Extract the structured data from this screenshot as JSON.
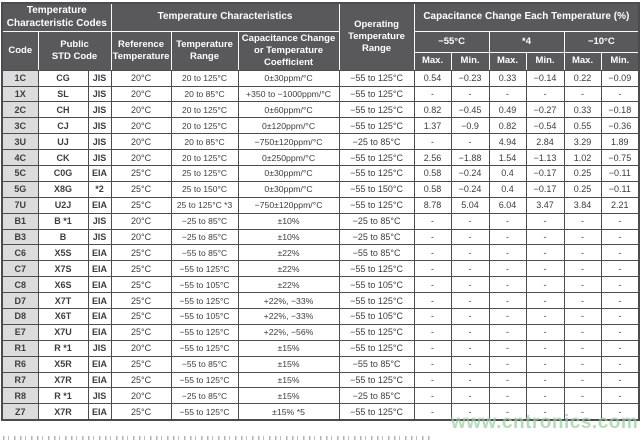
{
  "header": {
    "temp_char_codes": "Temperature\nCharacteristic Codes",
    "temp_characteristics": "Temperature Characteristics",
    "operating_temp_range": "Operating\nTemperature\nRange",
    "cap_change_each_temp": "Capacitance Change Each Temperature (%)",
    "code": "Code",
    "public_std_code": "Public\nSTD Code",
    "reference_temperature": "Reference\nTemperature",
    "temperature_range": "Temperature\nRange",
    "cap_change_or_coeff": "Capacitance Change\nor Temperature\nCoefficient",
    "temp_minus55": "−55°C",
    "temp_star4": "*4",
    "temp_minus10": "−10°C",
    "measure_labels": [
      "Max.",
      "Min.",
      "Max.",
      "Min.",
      "Max.",
      "Min."
    ]
  },
  "rows": [
    [
      "1C",
      "CG",
      "JIS",
      "20°C",
      "20 to 125°C",
      "0±30ppm/°C",
      "−55 to 125°C",
      "0.54",
      "−0.23",
      "0.33",
      "−0.14",
      "0.22",
      "−0.09"
    ],
    [
      "1X",
      "SL",
      "JIS",
      "20°C",
      "20 to 85°C",
      "+350 to −1000ppm/°C",
      "−55 to 125°C",
      "-",
      "-",
      "-",
      "-",
      "-",
      "-"
    ],
    [
      "2C",
      "CH",
      "JIS",
      "20°C",
      "20 to 125°C",
      "0±60ppm/°C",
      "−55 to 125°C",
      "0.82",
      "−0.45",
      "0.49",
      "−0.27",
      "0.33",
      "−0.18"
    ],
    [
      "3C",
      "CJ",
      "JIS",
      "20°C",
      "20 to 125°C",
      "0±120ppm/°C",
      "−55 to 125°C",
      "1.37",
      "−0.9",
      "0.82",
      "−0.54",
      "0.55",
      "−0.36"
    ],
    [
      "3U",
      "UJ",
      "JIS",
      "20°C",
      "20 to 85°C",
      "−750±120ppm/°C",
      "−25 to 85°C",
      "-",
      "-",
      "4.94",
      "2.84",
      "3.29",
      "1.89"
    ],
    [
      "4C",
      "CK",
      "JIS",
      "20°C",
      "20 to 125°C",
      "0±250ppm/°C",
      "−55 to 125°C",
      "2.56",
      "−1.88",
      "1.54",
      "−1.13",
      "1.02",
      "−0.75"
    ],
    [
      "5C",
      "C0G",
      "EIA",
      "25°C",
      "25 to 125°C",
      "0±30ppm/°C",
      "−55 to 125°C",
      "0.58",
      "−0.24",
      "0.4",
      "−0.17",
      "0.25",
      "−0.11"
    ],
    [
      "5G",
      "X8G",
      "*2",
      "25°C",
      "25 to 150°C",
      "0±30ppm/°C",
      "−55 to 150°C",
      "0.58",
      "−0.24",
      "0.4",
      "−0.17",
      "0.25",
      "−0.11"
    ],
    [
      "7U",
      "U2J",
      "EIA",
      "25°C",
      "25 to 125°C *3",
      "−750±120ppm/°C",
      "−55 to 125°C",
      "8.78",
      "5.04",
      "6.04",
      "3.47",
      "3.84",
      "2.21"
    ],
    [
      "B1",
      "B *1",
      "JIS",
      "20°C",
      "−25 to 85°C",
      "±10%",
      "−25 to 85°C",
      "-",
      "-",
      "-",
      "-",
      "-",
      "-"
    ],
    [
      "B3",
      "B",
      "JIS",
      "20°C",
      "−25 to 85°C",
      "±10%",
      "−25 to 85°C",
      "-",
      "-",
      "-",
      "-",
      "-",
      "-"
    ],
    [
      "C6",
      "X5S",
      "EIA",
      "25°C",
      "−55 to 85°C",
      "±22%",
      "−55 to 85°C",
      "-",
      "-",
      "-",
      "-",
      "-",
      "-"
    ],
    [
      "C7",
      "X7S",
      "EIA",
      "25°C",
      "−55 to 125°C",
      "±22%",
      "−55 to 125°C",
      "-",
      "-",
      "-",
      "-",
      "-",
      "-"
    ],
    [
      "C8",
      "X6S",
      "EIA",
      "25°C",
      "−55 to 105°C",
      "±22%",
      "−55 to 105°C",
      "-",
      "-",
      "-",
      "-",
      "-",
      "-"
    ],
    [
      "D7",
      "X7T",
      "EIA",
      "25°C",
      "−55 to 125°C",
      "+22%, −33%",
      "−55 to 125°C",
      "-",
      "-",
      "-",
      "-",
      "-",
      "-"
    ],
    [
      "D8",
      "X6T",
      "EIA",
      "25°C",
      "−55 to 105°C",
      "+22%, −33%",
      "−55 to 105°C",
      "-",
      "-",
      "-",
      "-",
      "-",
      "-"
    ],
    [
      "E7",
      "X7U",
      "EIA",
      "25°C",
      "−55 to 125°C",
      "+22%, −56%",
      "−55 to 125°C",
      "-",
      "-",
      "-",
      "-",
      "-",
      "-"
    ],
    [
      "R1",
      "R *1",
      "JIS",
      "20°C",
      "−55 to 125°C",
      "±15%",
      "−55 to 125°C",
      "-",
      "-",
      "-",
      "-",
      "-",
      "-"
    ],
    [
      "R6",
      "X5R",
      "EIA",
      "25°C",
      "−55 to 85°C",
      "±15%",
      "−55 to 85°C",
      "-",
      "-",
      "-",
      "-",
      "-",
      "-"
    ],
    [
      "R7",
      "X7R",
      "EIA",
      "25°C",
      "−55 to 125°C",
      "±15%",
      "−55 to 125°C",
      "-",
      "-",
      "-",
      "-",
      "-",
      "-"
    ],
    [
      "R8",
      "R *1",
      "JIS",
      "20°C",
      "−25 to 85°C",
      "±15%",
      "−25 to 85°C",
      "-",
      "-",
      "-",
      "-",
      "-",
      "-"
    ],
    [
      "Z7",
      "X7R",
      "EIA",
      "25°C",
      "−55 to 125°C",
      "±15% *5",
      "−55 to 125°C",
      "-",
      "-",
      "-",
      "-",
      "-",
      "-"
    ]
  ],
  "watermark": "www.cntronics.com",
  "colors": {
    "header_bg": "#59595b",
    "code_col_bg": "#dcdcdd",
    "border": "#4c4c4e",
    "text": "#3d3d3f",
    "watermark_green": "#9ccca2"
  }
}
